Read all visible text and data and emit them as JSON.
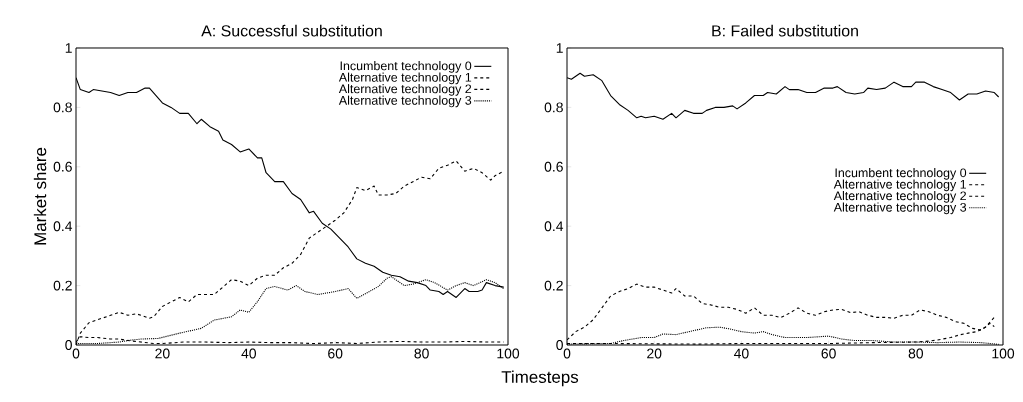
{
  "chart_data": [
    {
      "type": "line",
      "title": "A: Successful substitution",
      "xlabel": "Timesteps",
      "ylabel": "Market share",
      "xlim": [
        0,
        100
      ],
      "ylim": [
        0,
        1
      ],
      "xticks": [
        0,
        20,
        40,
        60,
        80,
        100
      ],
      "yticks": [
        0,
        0.2,
        0.4,
        0.6,
        0.8,
        1
      ],
      "legend": "top right",
      "series": [
        {
          "name": "Incumbent technology 0",
          "color": "#000000",
          "line_style": "solid",
          "x": [
            0,
            1,
            3,
            4,
            8,
            10,
            12,
            14,
            16,
            17,
            20,
            22,
            24,
            26,
            28,
            29,
            31,
            33,
            34,
            36,
            38,
            40,
            42,
            43,
            44,
            46,
            48,
            50,
            52,
            54,
            55,
            57,
            59,
            61,
            63,
            65,
            67,
            69,
            71,
            73,
            75,
            77,
            79,
            81,
            82,
            84,
            85,
            86,
            88,
            90,
            91,
            93,
            94,
            95,
            97,
            99
          ],
          "values": [
            0.9,
            0.86,
            0.85,
            0.86,
            0.85,
            0.84,
            0.85,
            0.85,
            0.865,
            0.865,
            0.815,
            0.8,
            0.78,
            0.78,
            0.745,
            0.76,
            0.735,
            0.72,
            0.69,
            0.675,
            0.65,
            0.66,
            0.63,
            0.63,
            0.58,
            0.55,
            0.55,
            0.51,
            0.49,
            0.445,
            0.45,
            0.41,
            0.39,
            0.36,
            0.33,
            0.29,
            0.275,
            0.265,
            0.245,
            0.235,
            0.23,
            0.215,
            0.21,
            0.2,
            0.185,
            0.18,
            0.17,
            0.18,
            0.16,
            0.19,
            0.18,
            0.18,
            0.185,
            0.21,
            0.2,
            0.195
          ]
        },
        {
          "name": "Alternative technology 1",
          "color": "#000000",
          "line_style": "dashed",
          "x": [
            0,
            1,
            3,
            5,
            8,
            10,
            12,
            14,
            17,
            18,
            20,
            22,
            24,
            26,
            28,
            30,
            32,
            34,
            36,
            38,
            40,
            42,
            44,
            46,
            48,
            50,
            52,
            54,
            56,
            58,
            60,
            62,
            64,
            65,
            67,
            69,
            70,
            72,
            74,
            76,
            78,
            80,
            82,
            84,
            86,
            88,
            90,
            92,
            94,
            96,
            97,
            99
          ],
          "values": [
            0,
            0.04,
            0.075,
            0.085,
            0.1,
            0.11,
            0.1,
            0.105,
            0.09,
            0.095,
            0.13,
            0.145,
            0.16,
            0.145,
            0.17,
            0.17,
            0.17,
            0.195,
            0.22,
            0.215,
            0.2,
            0.225,
            0.235,
            0.235,
            0.26,
            0.275,
            0.305,
            0.36,
            0.38,
            0.4,
            0.42,
            0.445,
            0.49,
            0.53,
            0.52,
            0.535,
            0.505,
            0.505,
            0.51,
            0.535,
            0.55,
            0.565,
            0.56,
            0.595,
            0.605,
            0.62,
            0.585,
            0.595,
            0.58,
            0.555,
            0.57,
            0.585
          ]
        },
        {
          "name": "Alternative technology 2",
          "color": "#000000",
          "line_style": "dashed",
          "x": [
            0,
            1,
            3,
            5,
            8,
            10,
            12,
            15,
            18,
            20,
            25,
            30,
            35,
            40,
            45,
            50,
            55,
            60,
            65,
            70,
            75,
            80,
            85,
            90,
            95,
            99
          ],
          "values": [
            0.01,
            0.028,
            0.025,
            0.025,
            0.02,
            0.02,
            0.015,
            0.01,
            0.005,
            0.005,
            0.01,
            0.01,
            0.008,
            0.01,
            0.008,
            0.008,
            0.005,
            0.008,
            0.005,
            0.01,
            0.012,
            0.01,
            0.01,
            0.012,
            0.01,
            0.01
          ]
        },
        {
          "name": "Alternative technology 3",
          "color": "#000000",
          "line_style": "dotted",
          "x": [
            0,
            5,
            10,
            12,
            15,
            19,
            24,
            29,
            32,
            36,
            38,
            40,
            42,
            44,
            46,
            49,
            51,
            53,
            56,
            58,
            60,
            63,
            65,
            70,
            72,
            73,
            76,
            78,
            81,
            83,
            86,
            88,
            90,
            92,
            95,
            97,
            99
          ],
          "values": [
            0.005,
            0.005,
            0.01,
            0.015,
            0.02,
            0.022,
            0.04,
            0.056,
            0.084,
            0.095,
            0.118,
            0.11,
            0.146,
            0.19,
            0.197,
            0.185,
            0.2,
            0.18,
            0.17,
            0.175,
            0.18,
            0.19,
            0.157,
            0.197,
            0.225,
            0.23,
            0.2,
            0.205,
            0.22,
            0.21,
            0.185,
            0.2,
            0.21,
            0.2,
            0.22,
            0.21,
            0.19
          ]
        }
      ]
    },
    {
      "type": "line",
      "title": "B: Failed substitution",
      "xlim": [
        0,
        100
      ],
      "ylim": [
        0,
        1
      ],
      "xticks": [
        0,
        20,
        40,
        60,
        80,
        100
      ],
      "yticks": [
        0,
        0.2,
        0.4,
        0.6,
        0.8,
        1
      ],
      "legend": "right",
      "series": [
        {
          "name": "Incumbent technology 0",
          "color": "#000000",
          "line_style": "solid",
          "x": [
            0,
            1,
            3,
            4,
            6,
            8,
            10,
            12,
            14,
            16,
            17,
            18,
            20,
            22,
            24,
            25,
            27,
            29,
            31,
            32,
            34,
            36,
            38,
            39,
            41,
            43,
            45,
            46,
            48,
            50,
            51,
            53,
            55,
            57,
            59,
            61,
            62,
            64,
            66,
            68,
            69,
            71,
            73,
            75,
            77,
            79,
            80,
            82,
            84,
            86,
            88,
            90,
            92,
            94,
            96,
            98,
            99
          ],
          "values": [
            0.9,
            0.895,
            0.915,
            0.905,
            0.91,
            0.89,
            0.84,
            0.81,
            0.79,
            0.765,
            0.77,
            0.765,
            0.77,
            0.76,
            0.78,
            0.765,
            0.79,
            0.78,
            0.78,
            0.79,
            0.8,
            0.8,
            0.805,
            0.795,
            0.815,
            0.84,
            0.84,
            0.85,
            0.845,
            0.87,
            0.86,
            0.86,
            0.85,
            0.85,
            0.865,
            0.865,
            0.87,
            0.85,
            0.845,
            0.85,
            0.865,
            0.86,
            0.865,
            0.885,
            0.87,
            0.87,
            0.885,
            0.885,
            0.87,
            0.86,
            0.85,
            0.825,
            0.845,
            0.845,
            0.855,
            0.85,
            0.835
          ]
        },
        {
          "name": "Alternative technology 1",
          "color": "#000000",
          "line_style": "dashed",
          "x": [
            0,
            2,
            4,
            6,
            8,
            10,
            12,
            14,
            16,
            18,
            20,
            22,
            24,
            25,
            27,
            29,
            31,
            33,
            35,
            37,
            39,
            41,
            43,
            45,
            47,
            49,
            51,
            53,
            55,
            57,
            59,
            61,
            63,
            65,
            67,
            69,
            71,
            73,
            75,
            77,
            79,
            81,
            83,
            85,
            87,
            89,
            91,
            93,
            95,
            97,
            98
          ],
          "values": [
            0.017,
            0.045,
            0.06,
            0.085,
            0.125,
            0.165,
            0.18,
            0.19,
            0.205,
            0.195,
            0.195,
            0.185,
            0.175,
            0.19,
            0.165,
            0.165,
            0.14,
            0.135,
            0.127,
            0.127,
            0.12,
            0.107,
            0.125,
            0.1,
            0.1,
            0.092,
            0.107,
            0.125,
            0.107,
            0.1,
            0.112,
            0.118,
            0.12,
            0.109,
            0.112,
            0.1,
            0.093,
            0.093,
            0.09,
            0.1,
            0.1,
            0.118,
            0.112,
            0.1,
            0.093,
            0.079,
            0.073,
            0.056,
            0.05,
            0.073,
            0.062
          ]
        },
        {
          "name": "Alternative technology 2",
          "color": "#000000",
          "line_style": "dashed",
          "x": [
            0,
            10,
            20,
            30,
            40,
            50,
            60,
            70,
            80,
            83,
            85,
            88,
            90,
            92,
            94,
            96,
            98
          ],
          "values": [
            0.005,
            0.005,
            0.004,
            0.003,
            0.005,
            0.005,
            0.005,
            0.008,
            0.01,
            0.013,
            0.017,
            0.025,
            0.034,
            0.04,
            0.045,
            0.06,
            0.093
          ]
        },
        {
          "name": "Alternative technology 3",
          "color": "#000000",
          "line_style": "dotted",
          "x": [
            0,
            10,
            13,
            17,
            20,
            22,
            25,
            28,
            32,
            35,
            37,
            40,
            43,
            45,
            47,
            50,
            55,
            60,
            63,
            66,
            70,
            75,
            80,
            85,
            90,
            95,
            99
          ],
          "values": [
            0.003,
            0.005,
            0.015,
            0.025,
            0.025,
            0.037,
            0.035,
            0.045,
            0.058,
            0.06,
            0.055,
            0.045,
            0.04,
            0.045,
            0.035,
            0.025,
            0.025,
            0.03,
            0.02,
            0.015,
            0.015,
            0.01,
            0.01,
            0.008,
            0.01,
            0.008,
            0.002
          ]
        }
      ]
    }
  ]
}
